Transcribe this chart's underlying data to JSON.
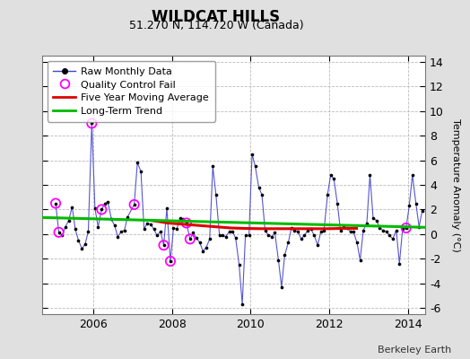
{
  "title": "WILDCAT HILLS",
  "subtitle": "51.270 N, 114.720 W (Canada)",
  "credit": "Berkeley Earth",
  "ylabel": "Temperature Anomaly (°C)",
  "xlim": [
    2004.7,
    2014.45
  ],
  "ylim": [
    -6.5,
    14.5
  ],
  "yticks": [
    -6,
    -4,
    -2,
    0,
    2,
    4,
    6,
    8,
    10,
    12,
    14
  ],
  "xticks": [
    2006,
    2008,
    2010,
    2012,
    2014
  ],
  "bg_color": "#e0e0e0",
  "plot_bg": "#ffffff",
  "raw_color": "#4444cc",
  "raw_marker_color": "#000000",
  "qc_color": "#ff00ff",
  "moving_avg_color": "#dd0000",
  "trend_color": "#00bb00",
  "raw_data": [
    [
      2005.04,
      2.5
    ],
    [
      2005.12,
      0.15
    ],
    [
      2005.21,
      -0.1
    ],
    [
      2005.29,
      0.6
    ],
    [
      2005.37,
      1.1
    ],
    [
      2005.46,
      2.2
    ],
    [
      2005.54,
      0.4
    ],
    [
      2005.62,
      -0.5
    ],
    [
      2005.71,
      -1.2
    ],
    [
      2005.79,
      -0.8
    ],
    [
      2005.87,
      0.2
    ],
    [
      2005.96,
      9.0
    ],
    [
      2006.04,
      2.1
    ],
    [
      2006.12,
      0.6
    ],
    [
      2006.21,
      2.0
    ],
    [
      2006.29,
      2.5
    ],
    [
      2006.37,
      2.6
    ],
    [
      2006.46,
      1.2
    ],
    [
      2006.54,
      0.7
    ],
    [
      2006.62,
      -0.2
    ],
    [
      2006.71,
      0.2
    ],
    [
      2006.79,
      0.3
    ],
    [
      2006.87,
      1.4
    ],
    [
      2007.04,
      2.4
    ],
    [
      2007.12,
      5.8
    ],
    [
      2007.21,
      5.1
    ],
    [
      2007.29,
      0.4
    ],
    [
      2007.37,
      0.9
    ],
    [
      2007.46,
      0.8
    ],
    [
      2007.54,
      0.4
    ],
    [
      2007.62,
      -0.1
    ],
    [
      2007.71,
      0.2
    ],
    [
      2007.79,
      -0.9
    ],
    [
      2007.87,
      2.1
    ],
    [
      2007.96,
      -2.2
    ],
    [
      2008.04,
      0.5
    ],
    [
      2008.12,
      0.4
    ],
    [
      2008.21,
      1.3
    ],
    [
      2008.29,
      1.2
    ],
    [
      2008.37,
      0.9
    ],
    [
      2008.46,
      -0.4
    ],
    [
      2008.54,
      0.1
    ],
    [
      2008.62,
      -0.3
    ],
    [
      2008.71,
      -0.7
    ],
    [
      2008.79,
      -1.4
    ],
    [
      2008.87,
      -1.1
    ],
    [
      2008.96,
      -0.4
    ],
    [
      2009.04,
      5.5
    ],
    [
      2009.12,
      3.2
    ],
    [
      2009.21,
      -0.1
    ],
    [
      2009.29,
      -0.1
    ],
    [
      2009.37,
      -0.2
    ],
    [
      2009.46,
      0.2
    ],
    [
      2009.54,
      0.2
    ],
    [
      2009.62,
      -0.3
    ],
    [
      2009.71,
      -2.5
    ],
    [
      2009.79,
      -5.7
    ],
    [
      2009.87,
      -0.1
    ],
    [
      2009.96,
      -0.1
    ],
    [
      2010.04,
      6.5
    ],
    [
      2010.12,
      5.5
    ],
    [
      2010.21,
      3.8
    ],
    [
      2010.29,
      3.2
    ],
    [
      2010.37,
      0.3
    ],
    [
      2010.46,
      -0.1
    ],
    [
      2010.54,
      -0.2
    ],
    [
      2010.62,
      0.1
    ],
    [
      2010.71,
      -2.1
    ],
    [
      2010.79,
      -4.3
    ],
    [
      2010.87,
      -1.7
    ],
    [
      2010.96,
      -0.7
    ],
    [
      2011.04,
      0.5
    ],
    [
      2011.12,
      0.3
    ],
    [
      2011.21,
      0.2
    ],
    [
      2011.29,
      -0.4
    ],
    [
      2011.37,
      -0.1
    ],
    [
      2011.46,
      0.3
    ],
    [
      2011.54,
      0.4
    ],
    [
      2011.62,
      -0.1
    ],
    [
      2011.71,
      -0.9
    ],
    [
      2011.79,
      0.2
    ],
    [
      2011.87,
      0.3
    ],
    [
      2011.96,
      3.2
    ],
    [
      2012.04,
      4.8
    ],
    [
      2012.12,
      4.5
    ],
    [
      2012.21,
      2.5
    ],
    [
      2012.29,
      0.3
    ],
    [
      2012.37,
      0.6
    ],
    [
      2012.46,
      0.5
    ],
    [
      2012.54,
      0.2
    ],
    [
      2012.62,
      0.2
    ],
    [
      2012.71,
      -0.7
    ],
    [
      2012.79,
      -2.1
    ],
    [
      2012.87,
      0.3
    ],
    [
      2012.96,
      0.9
    ],
    [
      2013.04,
      4.8
    ],
    [
      2013.12,
      1.3
    ],
    [
      2013.21,
      1.1
    ],
    [
      2013.29,
      0.5
    ],
    [
      2013.37,
      0.3
    ],
    [
      2013.46,
      0.2
    ],
    [
      2013.54,
      -0.1
    ],
    [
      2013.62,
      -0.4
    ],
    [
      2013.71,
      0.3
    ],
    [
      2013.79,
      -2.4
    ],
    [
      2013.87,
      0.4
    ],
    [
      2013.96,
      0.5
    ],
    [
      2014.04,
      2.3
    ],
    [
      2014.12,
      4.8
    ],
    [
      2014.21,
      2.5
    ],
    [
      2014.29,
      0.6
    ],
    [
      2014.37,
      1.9
    ]
  ],
  "qc_fails_x": [
    2005.04,
    2005.12,
    2005.96,
    2006.21,
    2007.04,
    2007.79,
    2007.96,
    2008.37,
    2008.46,
    2013.96
  ],
  "qc_fails_y": [
    2.5,
    0.15,
    9.0,
    2.0,
    2.4,
    -0.9,
    -2.2,
    0.9,
    -0.4,
    0.5
  ],
  "moving_avg_x": [
    2007.5,
    2007.7,
    2007.9,
    2008.1,
    2008.3,
    2008.5,
    2008.7,
    2008.9,
    2009.1,
    2009.3,
    2009.5,
    2009.7,
    2009.9,
    2010.1,
    2010.3,
    2010.5,
    2010.7,
    2010.9,
    2011.1,
    2011.3,
    2011.5,
    2011.7,
    2011.9,
    2012.1,
    2012.3,
    2012.5,
    2012.7
  ],
  "moving_avg_y": [
    1.1,
    1.0,
    0.9,
    0.85,
    0.8,
    0.75,
    0.7,
    0.65,
    0.6,
    0.55,
    0.5,
    0.48,
    0.46,
    0.45,
    0.44,
    0.44,
    0.44,
    0.44,
    0.44,
    0.44,
    0.44,
    0.44,
    0.44,
    0.45,
    0.46,
    0.47,
    0.47
  ],
  "trend_x": [
    2004.7,
    2014.45
  ],
  "trend_y": [
    1.35,
    0.55
  ]
}
